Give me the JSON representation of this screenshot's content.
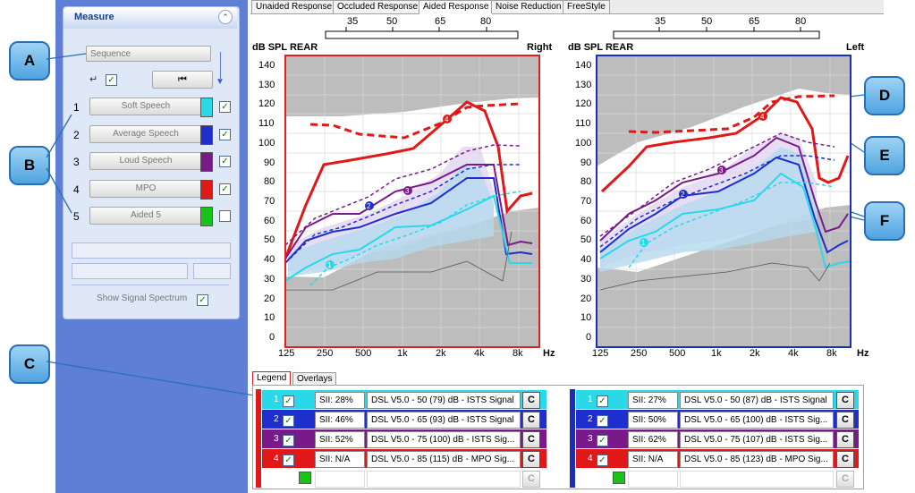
{
  "tabs": [
    "Unaided Response",
    "Occluded Response",
    "Aided Response",
    "Noise Reduction",
    "FreeStyle"
  ],
  "active_tab": "Aided Response",
  "measure": {
    "title": "Measure",
    "sequence_label": "Sequence",
    "items": [
      {
        "num": "1",
        "label": "Soft Speech",
        "color": "#29d9e8",
        "checked": true
      },
      {
        "num": "2",
        "label": "Average Speech",
        "color": "#1f2ecf",
        "checked": true
      },
      {
        "num": "3",
        "label": "Loud Speech",
        "color": "#7a1a8a",
        "checked": true
      },
      {
        "num": "4",
        "label": "MPO",
        "color": "#e01818",
        "checked": true
      },
      {
        "num": "5",
        "label": "Aided 5",
        "color": "#19c419",
        "checked": false
      }
    ],
    "show_signal_spectrum": "Show Signal Spectrum"
  },
  "callouts": [
    "A",
    "B",
    "C",
    "D",
    "E",
    "F"
  ],
  "charts": [
    {
      "side": "Right",
      "ylabel": "dB SPL REAR",
      "frame_color": "#e02020"
    },
    {
      "side": "Left",
      "ylabel": "dB SPL REAR",
      "frame_color": "#1b2fb5"
    }
  ],
  "top_scale": [
    "35",
    "50",
    "65",
    "80"
  ],
  "y_ticks": [
    "140",
    "130",
    "120",
    "110",
    "100",
    "90",
    "80",
    "70",
    "60",
    "50",
    "40",
    "30",
    "20",
    "10",
    "0"
  ],
  "x_ticks": [
    "125",
    "250",
    "500",
    "1k",
    "2k",
    "4k",
    "8k"
  ],
  "x_unit": "Hz",
  "legend": {
    "tabs": [
      "Legend",
      "Overlays"
    ],
    "right": [
      {
        "num": "1",
        "sii": "SII: 28%",
        "desc": "DSL V5.0 - 50 (79) dB - ISTS Signal",
        "color": "#29d9e8",
        "border": "#29d9e8"
      },
      {
        "num": "2",
        "sii": "SII: 46%",
        "desc": "DSL V5.0 - 65 (93) dB - ISTS Signal",
        "color": "#1f2ecf",
        "border": "#1f2ecf"
      },
      {
        "num": "3",
        "sii": "SII: 52%",
        "desc": "DSL V5.0 - 75 (100) dB - ISTS Sig...",
        "color": "#7a1a8a",
        "border": "#7a1a8a"
      },
      {
        "num": "4",
        "sii": "SII: N/A",
        "desc": "DSL V5.0 - 85 (115) dB - MPO Sig...",
        "color": "#e01818",
        "border": "#e01818"
      }
    ],
    "left": [
      {
        "num": "1",
        "sii": "SII: 27%",
        "desc": "DSL V5.0 - 50 (87) dB - ISTS Signal",
        "color": "#29d9e8",
        "border": "#29d9e8"
      },
      {
        "num": "2",
        "sii": "SII: 50%",
        "desc": "DSL V5.0 - 65 (100) dB - ISTS Sig...",
        "color": "#1f2ecf",
        "border": "#1f2ecf"
      },
      {
        "num": "3",
        "sii": "SII: 62%",
        "desc": "DSL V5.0 - 75 (107) dB - ISTS Sig...",
        "color": "#7a1a8a",
        "border": "#7a1a8a"
      },
      {
        "num": "4",
        "sii": "SII: N/A",
        "desc": "DSL V5.0 - 85 (123) dB - MPO Sig...",
        "color": "#e01818",
        "border": "#e01818"
      }
    ],
    "button_label": "C"
  }
}
